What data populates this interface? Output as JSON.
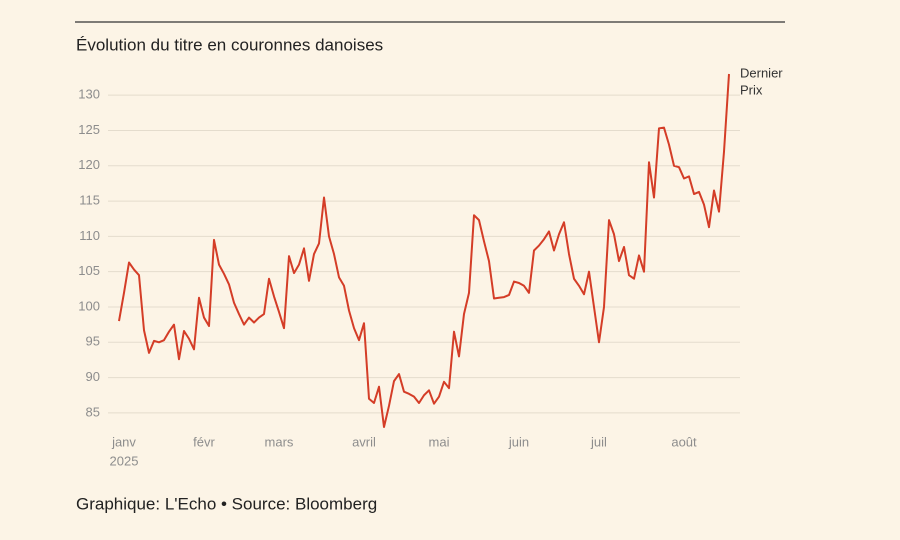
{
  "chart_data": {
    "type": "line",
    "title": "Évolution du titre en couronnes danoises",
    "source": "Graphique: L'Echo • Source: Bloomberg",
    "annotation": [
      "Dernier",
      "Prix"
    ],
    "year_label": "2025",
    "categories": [
      null,
      "janv",
      null,
      null,
      null,
      null,
      null,
      null,
      null,
      null,
      null,
      null,
      null,
      null,
      null,
      null,
      null,
      "févr",
      null,
      null,
      null,
      null,
      null,
      null,
      null,
      null,
      null,
      null,
      null,
      null,
      null,
      null,
      "mars",
      null,
      null,
      null,
      null,
      null,
      null,
      null,
      null,
      null,
      null,
      null,
      null,
      null,
      null,
      null,
      null,
      "avril",
      null,
      null,
      null,
      null,
      null,
      null,
      null,
      null,
      null,
      null,
      null,
      null,
      null,
      null,
      "mai",
      null,
      null,
      null,
      null,
      null,
      null,
      null,
      null,
      null,
      null,
      null,
      null,
      null,
      null,
      null,
      "juin",
      null,
      null,
      null,
      null,
      null,
      null,
      null,
      null,
      null,
      null,
      null,
      null,
      null,
      null,
      null,
      "juil",
      null,
      null,
      null,
      null,
      null,
      null,
      null,
      null,
      null,
      null,
      null,
      null,
      null,
      null,
      null,
      null,
      "août",
      null,
      null,
      null,
      null,
      null,
      null,
      null,
      null,
      null
    ],
    "series": [
      {
        "name": "Prix",
        "color": "#d43d27",
        "values": [
          98,
          102,
          106.3,
          105.3,
          104.5,
          96.7,
          93.5,
          95.2,
          95,
          95.3,
          96.5,
          97.5,
          92.6,
          96.6,
          95.5,
          94,
          101.3,
          98.5,
          97.3,
          109.5,
          106,
          104.7,
          103.2,
          100.6,
          99,
          97.5,
          98.5,
          97.8,
          98.5,
          99,
          104,
          101.5,
          99.3,
          97,
          107.2,
          104.8,
          106,
          108.3,
          103.7,
          107.5,
          109,
          115.5,
          110,
          107.5,
          104.2,
          103,
          99.5,
          97,
          95.3,
          97.7,
          87,
          86.4,
          88.7,
          83,
          86,
          89.5,
          90.5,
          88,
          87.7,
          87.3,
          86.4,
          87.5,
          88.2,
          86.3,
          87.3,
          89.4,
          88.5,
          96.5,
          93,
          99,
          102,
          113,
          112.3,
          109.3,
          106.5,
          101.2,
          101.3,
          101.4,
          101.7,
          103.6,
          103.4,
          103,
          102,
          108,
          108.7,
          109.6,
          110.7,
          108,
          110.3,
          112,
          107.5,
          104,
          103,
          101.8,
          105,
          100,
          95,
          100,
          112.3,
          110.3,
          106.5,
          108.5,
          104.5,
          104,
          107.3,
          105,
          120.5,
          115.5,
          125.3,
          125.4,
          123,
          120,
          119.8,
          118.2,
          118.5,
          116,
          116.3,
          114.5,
          111.3,
          116.5,
          113.5,
          122,
          133
        ]
      }
    ],
    "ylim": [
      83,
      133
    ],
    "yticks": [
      85,
      90,
      95,
      100,
      105,
      110,
      115,
      120,
      125,
      130
    ],
    "grid": true
  }
}
